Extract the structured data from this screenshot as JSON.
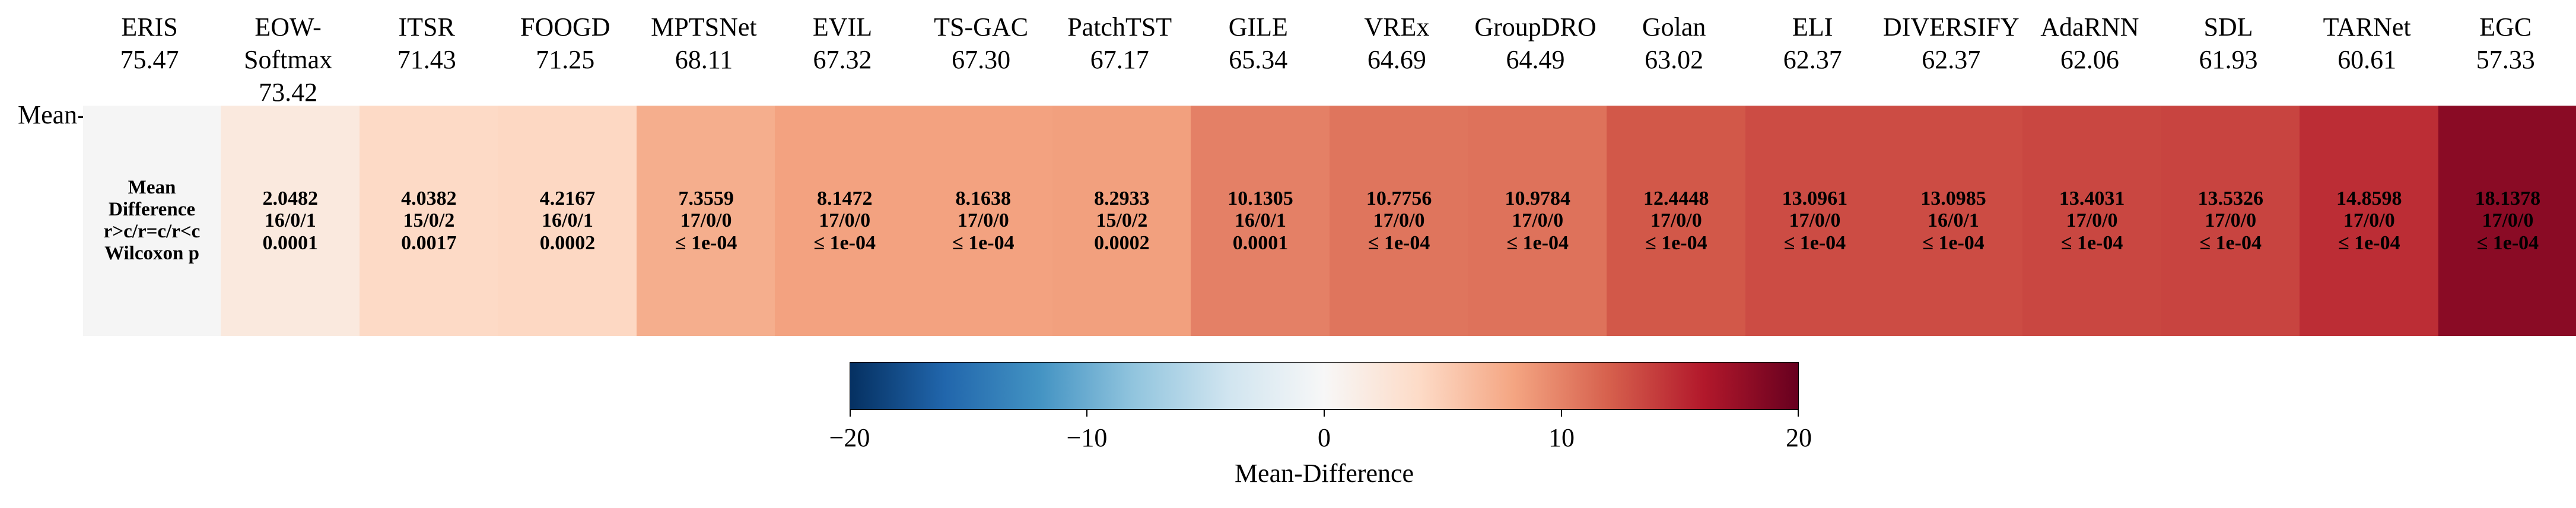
{
  "chart_data": {
    "type": "heatmap",
    "row_label": "Mean-Acc",
    "legend_lines": [
      "Mean",
      "Difference",
      "r>c/r=c/r<c",
      "Wilcoxon p"
    ],
    "reference": {
      "name": "ERIS",
      "score": "75.47"
    },
    "methods": [
      {
        "name": "EOW-Softmax",
        "score": "73.42",
        "mean_diff": 2.0482,
        "mean_diff_label": "2.0482",
        "wtl": "16/0/1",
        "p": "0.0001"
      },
      {
        "name": "ITSR",
        "score": "71.43",
        "mean_diff": 4.0382,
        "mean_diff_label": "4.0382",
        "wtl": "15/0/2",
        "p": "0.0017"
      },
      {
        "name": "FOOGD",
        "score": "71.25",
        "mean_diff": 4.2167,
        "mean_diff_label": "4.2167",
        "wtl": "16/0/1",
        "p": "0.0002"
      },
      {
        "name": "MPTSNet",
        "score": "68.11",
        "mean_diff": 7.3559,
        "mean_diff_label": "7.3559",
        "wtl": "17/0/0",
        "p": "≤ 1e-04"
      },
      {
        "name": "EVIL",
        "score": "67.32",
        "mean_diff": 8.1472,
        "mean_diff_label": "8.1472",
        "wtl": "17/0/0",
        "p": "≤ 1e-04"
      },
      {
        "name": "TS-GAC",
        "score": "67.30",
        "mean_diff": 8.1638,
        "mean_diff_label": "8.1638",
        "wtl": "17/0/0",
        "p": "≤ 1e-04"
      },
      {
        "name": "PatchTST",
        "score": "67.17",
        "mean_diff": 8.2933,
        "mean_diff_label": "8.2933",
        "wtl": "15/0/2",
        "p": "0.0002"
      },
      {
        "name": "GILE",
        "score": "65.34",
        "mean_diff": 10.1305,
        "mean_diff_label": "10.1305",
        "wtl": "16/0/1",
        "p": "0.0001"
      },
      {
        "name": "VREx",
        "score": "64.69",
        "mean_diff": 10.7756,
        "mean_diff_label": "10.7756",
        "wtl": "17/0/0",
        "p": "≤ 1e-04"
      },
      {
        "name": "GroupDRO",
        "score": "64.49",
        "mean_diff": 10.9784,
        "mean_diff_label": "10.9784",
        "wtl": "17/0/0",
        "p": "≤ 1e-04"
      },
      {
        "name": "Golan",
        "score": "63.02",
        "mean_diff": 12.4448,
        "mean_diff_label": "12.4448",
        "wtl": "17/0/0",
        "p": "≤ 1e-04"
      },
      {
        "name": "ELI",
        "score": "62.37",
        "mean_diff": 13.0961,
        "mean_diff_label": "13.0961",
        "wtl": "17/0/0",
        "p": "≤ 1e-04"
      },
      {
        "name": "DIVERSIFY",
        "score": "62.37",
        "mean_diff": 13.0985,
        "mean_diff_label": "13.0985",
        "wtl": "16/0/1",
        "p": "≤ 1e-04"
      },
      {
        "name": "AdaRNN",
        "score": "62.06",
        "mean_diff": 13.4031,
        "mean_diff_label": "13.4031",
        "wtl": "17/0/0",
        "p": "≤ 1e-04"
      },
      {
        "name": "SDL",
        "score": "61.93",
        "mean_diff": 13.5326,
        "mean_diff_label": "13.5326",
        "wtl": "17/0/0",
        "p": "≤ 1e-04"
      },
      {
        "name": "TARNet",
        "score": "60.61",
        "mean_diff": 14.8598,
        "mean_diff_label": "14.8598",
        "wtl": "17/0/0",
        "p": "≤ 1e-04"
      },
      {
        "name": "EGC",
        "score": "57.33",
        "mean_diff": 18.1378,
        "mean_diff_label": "18.1378",
        "wtl": "17/0/0",
        "p": "≤ 1e-04"
      }
    ],
    "colorbar": {
      "title": "Mean-Difference",
      "range": [
        -20,
        20
      ],
      "ticks": [
        -20,
        -10,
        0,
        10,
        20
      ],
      "tick_labels": [
        "−20",
        "−10",
        "0",
        "10",
        "20"
      ],
      "colormap": "RdBu_r",
      "stops": [
        "#053061",
        "#2166ac",
        "#4393c3",
        "#92c5de",
        "#d1e5f0",
        "#f7f7f7",
        "#fddbc7",
        "#f4a582",
        "#d6604d",
        "#b2182b",
        "#67001f"
      ]
    }
  }
}
